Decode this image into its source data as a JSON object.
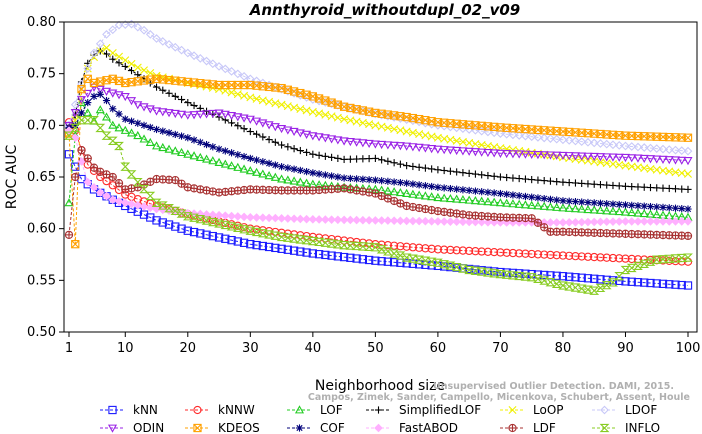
{
  "watermark": {
    "line1": "Unsupervised Outlier Detection. DAMI, 2015.",
    "line2": "Campos, Zimek, Sander, Campello, Micenkova, Schubert, Assent, Houle"
  },
  "chart_data": {
    "type": "line",
    "title": "Annthyroid_withoutdupl_02_v09",
    "xlabel": "Neighborhood size",
    "ylabel": "ROC AUC",
    "xlim": [
      1,
      100
    ],
    "ylim": [
      0.5,
      0.8
    ],
    "xticks": [
      1,
      10,
      20,
      30,
      40,
      50,
      60,
      70,
      80,
      90,
      100
    ],
    "yticks": [
      0.5,
      0.55,
      0.6,
      0.65,
      0.7,
      0.75,
      0.8
    ],
    "xtick_labels": [
      "1",
      "10",
      "20",
      "30",
      "40",
      "50",
      "60",
      "70",
      "80",
      "90",
      "100"
    ],
    "ytick_labels": [
      "0.50",
      "0.55",
      "0.60",
      "0.65",
      "0.70",
      "0.75",
      "0.80"
    ],
    "grid": false,
    "legend_position": "bottom",
    "series": [
      {
        "name": "kNN",
        "color": "#1a1aff",
        "marker": "square",
        "points": [
          [
            1,
            0.672
          ],
          [
            3,
            0.648
          ],
          [
            5,
            0.638
          ],
          [
            8,
            0.628
          ],
          [
            10,
            0.622
          ],
          [
            15,
            0.608
          ],
          [
            20,
            0.598
          ],
          [
            30,
            0.585
          ],
          [
            40,
            0.576
          ],
          [
            50,
            0.569
          ],
          [
            60,
            0.564
          ],
          [
            70,
            0.558
          ],
          [
            80,
            0.554
          ],
          [
            90,
            0.549
          ],
          [
            100,
            0.545
          ]
        ]
      },
      {
        "name": "kNNW",
        "color": "#ff2a2a",
        "marker": "circle",
        "points": [
          [
            1,
            0.703
          ],
          [
            2,
            0.695
          ],
          [
            3,
            0.676
          ],
          [
            4,
            0.662
          ],
          [
            6,
            0.65
          ],
          [
            8,
            0.642
          ],
          [
            10,
            0.633
          ],
          [
            15,
            0.622
          ],
          [
            20,
            0.614
          ],
          [
            30,
            0.6
          ],
          [
            40,
            0.592
          ],
          [
            50,
            0.585
          ],
          [
            60,
            0.58
          ],
          [
            70,
            0.577
          ],
          [
            80,
            0.574
          ],
          [
            90,
            0.571
          ],
          [
            100,
            0.568
          ]
        ]
      },
      {
        "name": "LOF",
        "color": "#22cc22",
        "marker": "triangle",
        "points": [
          [
            1,
            0.625
          ],
          [
            2,
            0.69
          ],
          [
            3,
            0.722
          ],
          [
            4,
            0.712
          ],
          [
            5,
            0.704
          ],
          [
            6,
            0.715
          ],
          [
            7,
            0.708
          ],
          [
            8,
            0.7
          ],
          [
            10,
            0.695
          ],
          [
            12,
            0.69
          ],
          [
            15,
            0.68
          ],
          [
            20,
            0.672
          ],
          [
            25,
            0.664
          ],
          [
            30,
            0.656
          ],
          [
            35,
            0.648
          ],
          [
            40,
            0.643
          ],
          [
            45,
            0.64
          ],
          [
            50,
            0.638
          ],
          [
            55,
            0.634
          ],
          [
            60,
            0.63
          ],
          [
            70,
            0.625
          ],
          [
            80,
            0.62
          ],
          [
            90,
            0.616
          ],
          [
            100,
            0.611
          ]
        ]
      },
      {
        "name": "SimplifiedLOF",
        "color": "#000000",
        "marker": "plus",
        "points": [
          [
            1,
            0.697
          ],
          [
            2,
            0.71
          ],
          [
            3,
            0.742
          ],
          [
            4,
            0.76
          ],
          [
            5,
            0.768
          ],
          [
            6,
            0.772
          ],
          [
            7,
            0.769
          ],
          [
            8,
            0.764
          ],
          [
            10,
            0.757
          ],
          [
            12,
            0.749
          ],
          [
            15,
            0.737
          ],
          [
            20,
            0.722
          ],
          [
            25,
            0.708
          ],
          [
            30,
            0.694
          ],
          [
            35,
            0.681
          ],
          [
            40,
            0.672
          ],
          [
            45,
            0.667
          ],
          [
            50,
            0.668
          ],
          [
            55,
            0.661
          ],
          [
            60,
            0.657
          ],
          [
            70,
            0.65
          ],
          [
            80,
            0.645
          ],
          [
            90,
            0.641
          ],
          [
            100,
            0.638
          ]
        ]
      },
      {
        "name": "LoOP",
        "color": "#f0f000",
        "marker": "cross",
        "points": [
          [
            1,
            0.69
          ],
          [
            2,
            0.705
          ],
          [
            3,
            0.735
          ],
          [
            4,
            0.755
          ],
          [
            5,
            0.766
          ],
          [
            6,
            0.772
          ],
          [
            7,
            0.775
          ],
          [
            8,
            0.77
          ],
          [
            10,
            0.763
          ],
          [
            12,
            0.756
          ],
          [
            15,
            0.748
          ],
          [
            20,
            0.741
          ],
          [
            25,
            0.735
          ],
          [
            30,
            0.727
          ],
          [
            35,
            0.72
          ],
          [
            40,
            0.713
          ],
          [
            45,
            0.706
          ],
          [
            50,
            0.7
          ],
          [
            60,
            0.688
          ],
          [
            70,
            0.678
          ],
          [
            80,
            0.669
          ],
          [
            90,
            0.661
          ],
          [
            100,
            0.653
          ]
        ]
      },
      {
        "name": "LDOF",
        "color": "#c8c8f8",
        "marker": "diamond",
        "points": [
          [
            1,
            0.7
          ],
          [
            3,
            0.74
          ],
          [
            5,
            0.77
          ],
          [
            7,
            0.788
          ],
          [
            9,
            0.797
          ],
          [
            11,
            0.798
          ],
          [
            13,
            0.792
          ],
          [
            15,
            0.784
          ],
          [
            20,
            0.77
          ],
          [
            25,
            0.757
          ],
          [
            30,
            0.745
          ],
          [
            35,
            0.735
          ],
          [
            40,
            0.725
          ],
          [
            45,
            0.718
          ],
          [
            50,
            0.711
          ],
          [
            60,
            0.7
          ],
          [
            70,
            0.692
          ],
          [
            80,
            0.686
          ],
          [
            90,
            0.68
          ],
          [
            100,
            0.675
          ]
        ]
      },
      {
        "name": "ODIN",
        "color": "#9a22e6",
        "marker": "triangle-down",
        "points": [
          [
            1,
            0.7
          ],
          [
            3,
            0.725
          ],
          [
            5,
            0.737
          ],
          [
            7,
            0.733
          ],
          [
            10,
            0.728
          ],
          [
            12,
            0.72
          ],
          [
            15,
            0.714
          ],
          [
            20,
            0.71
          ],
          [
            25,
            0.712
          ],
          [
            30,
            0.706
          ],
          [
            35,
            0.697
          ],
          [
            40,
            0.69
          ],
          [
            45,
            0.685
          ],
          [
            50,
            0.682
          ],
          [
            55,
            0.68
          ],
          [
            60,
            0.677
          ],
          [
            70,
            0.673
          ],
          [
            80,
            0.671
          ],
          [
            90,
            0.669
          ],
          [
            100,
            0.666
          ]
        ]
      },
      {
        "name": "KDEOS",
        "color": "#ffa000",
        "marker": "square-x",
        "points": [
          [
            1,
            0.692
          ],
          [
            2,
            0.585
          ],
          [
            3,
            0.735
          ],
          [
            4,
            0.745
          ],
          [
            5,
            0.741
          ],
          [
            8,
            0.745
          ],
          [
            10,
            0.741
          ],
          [
            15,
            0.745
          ],
          [
            20,
            0.742
          ],
          [
            25,
            0.739
          ],
          [
            30,
            0.739
          ],
          [
            35,
            0.736
          ],
          [
            40,
            0.728
          ],
          [
            45,
            0.718
          ],
          [
            50,
            0.712
          ],
          [
            55,
            0.708
          ],
          [
            60,
            0.703
          ],
          [
            70,
            0.698
          ],
          [
            80,
            0.694
          ],
          [
            90,
            0.69
          ],
          [
            100,
            0.688
          ]
        ]
      },
      {
        "name": "COF",
        "color": "#00007a",
        "marker": "asterisk",
        "points": [
          [
            1,
            0.698
          ],
          [
            2,
            0.7
          ],
          [
            3,
            0.712
          ],
          [
            4,
            0.722
          ],
          [
            5,
            0.728
          ],
          [
            6,
            0.73
          ],
          [
            7,
            0.724
          ],
          [
            8,
            0.716
          ],
          [
            10,
            0.706
          ],
          [
            15,
            0.696
          ],
          [
            20,
            0.688
          ],
          [
            25,
            0.677
          ],
          [
            30,
            0.668
          ],
          [
            35,
            0.66
          ],
          [
            40,
            0.654
          ],
          [
            45,
            0.649
          ],
          [
            50,
            0.647
          ],
          [
            55,
            0.644
          ],
          [
            60,
            0.64
          ],
          [
            70,
            0.634
          ],
          [
            80,
            0.627
          ],
          [
            90,
            0.623
          ],
          [
            100,
            0.619
          ]
        ]
      },
      {
        "name": "FastABOD",
        "color": "#ffb0ff",
        "marker": "diamond-filled",
        "points": [
          [
            1,
            0.695
          ],
          [
            2,
            0.688
          ],
          [
            3,
            0.665
          ],
          [
            4,
            0.645
          ],
          [
            6,
            0.635
          ],
          [
            8,
            0.628
          ],
          [
            10,
            0.625
          ],
          [
            15,
            0.619
          ],
          [
            20,
            0.615
          ],
          [
            30,
            0.611
          ],
          [
            40,
            0.609
          ],
          [
            50,
            0.608
          ],
          [
            60,
            0.607
          ],
          [
            70,
            0.606
          ],
          [
            80,
            0.606
          ],
          [
            90,
            0.607
          ],
          [
            100,
            0.607
          ]
        ]
      },
      {
        "name": "LDF",
        "color": "#a83232",
        "marker": "circle-plus",
        "points": [
          [
            1,
            0.594
          ],
          [
            2,
            0.65
          ],
          [
            3,
            0.676
          ],
          [
            4,
            0.668
          ],
          [
            5,
            0.659
          ],
          [
            6,
            0.655
          ],
          [
            8,
            0.65
          ],
          [
            10,
            0.638
          ],
          [
            12,
            0.64
          ],
          [
            15,
            0.648
          ],
          [
            18,
            0.647
          ],
          [
            20,
            0.64
          ],
          [
            25,
            0.635
          ],
          [
            30,
            0.638
          ],
          [
            35,
            0.637
          ],
          [
            40,
            0.637
          ],
          [
            45,
            0.639
          ],
          [
            50,
            0.634
          ],
          [
            55,
            0.622
          ],
          [
            60,
            0.617
          ],
          [
            65,
            0.613
          ],
          [
            70,
            0.611
          ],
          [
            75,
            0.61
          ],
          [
            78,
            0.597
          ],
          [
            80,
            0.597
          ],
          [
            90,
            0.595
          ],
          [
            100,
            0.593
          ]
        ]
      },
      {
        "name": "INFLO",
        "color": "#88cc22",
        "marker": "hourglass",
        "points": [
          [
            1,
            0.69
          ],
          [
            3,
            0.705
          ],
          [
            5,
            0.705
          ],
          [
            7,
            0.69
          ],
          [
            9,
            0.68
          ],
          [
            10,
            0.66
          ],
          [
            12,
            0.645
          ],
          [
            15,
            0.625
          ],
          [
            20,
            0.612
          ],
          [
            25,
            0.605
          ],
          [
            30,
            0.598
          ],
          [
            35,
            0.592
          ],
          [
            40,
            0.588
          ],
          [
            45,
            0.584
          ],
          [
            50,
            0.582
          ],
          [
            55,
            0.572
          ],
          [
            60,
            0.567
          ],
          [
            65,
            0.56
          ],
          [
            70,
            0.556
          ],
          [
            75,
            0.553
          ],
          [
            80,
            0.545
          ],
          [
            85,
            0.54
          ],
          [
            88,
            0.548
          ],
          [
            90,
            0.56
          ],
          [
            95,
            0.57
          ],
          [
            100,
            0.572
          ]
        ]
      }
    ]
  }
}
